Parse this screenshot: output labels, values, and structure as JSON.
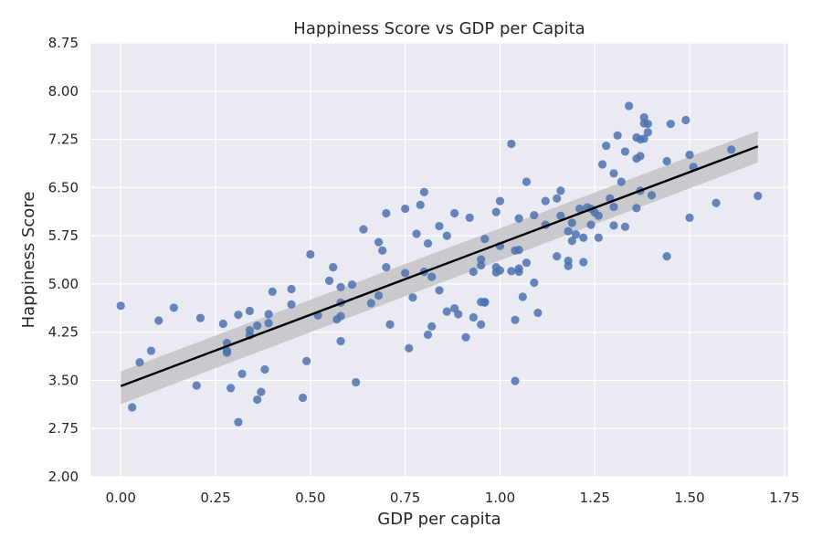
{
  "chart_data": {
    "type": "scatter",
    "title": "Happiness Score vs GDP per Capita",
    "xlabel": "GDP per capita",
    "ylabel": "Happiness Score",
    "xlim": [
      -0.08,
      1.76
    ],
    "ylim": [
      2.0,
      8.75
    ],
    "xticks": [
      0.0,
      0.25,
      0.5,
      0.75,
      1.0,
      1.25,
      1.5,
      1.75
    ],
    "xtick_labels": [
      "0.00",
      "0.25",
      "0.50",
      "0.75",
      "1.00",
      "1.25",
      "1.50",
      "1.75"
    ],
    "yticks": [
      2.0,
      2.75,
      3.5,
      4.25,
      5.0,
      5.75,
      6.5,
      7.25,
      8.0,
      8.75
    ],
    "ytick_labels": [
      "2.00",
      "2.75",
      "3.50",
      "4.25",
      "5.00",
      "5.75",
      "6.50",
      "7.25",
      "8.00",
      "8.75"
    ],
    "grid": true,
    "colors": {
      "background": "#eaeaf2",
      "grid": "#ffffff",
      "point": "#4c72b0",
      "fit_line": "#000000",
      "confidence_band": "#bdbdc2"
    },
    "regression": {
      "x": [
        0.0,
        1.68
      ],
      "y": [
        3.41,
        7.14
      ],
      "band_lower": [
        3.13,
        6.89
      ],
      "band_upper": [
        3.64,
        7.38
      ]
    },
    "points": [
      [
        0.0,
        4.66
      ],
      [
        0.03,
        3.08
      ],
      [
        0.05,
        3.78
      ],
      [
        0.08,
        3.96
      ],
      [
        0.1,
        4.43
      ],
      [
        0.14,
        4.63
      ],
      [
        0.2,
        3.42
      ],
      [
        0.21,
        4.47
      ],
      [
        0.27,
        4.38
      ],
      [
        0.28,
        4.08
      ],
      [
        0.28,
        3.96
      ],
      [
        0.28,
        3.93
      ],
      [
        0.29,
        3.38
      ],
      [
        0.31,
        2.85
      ],
      [
        0.31,
        4.52
      ],
      [
        0.32,
        3.6
      ],
      [
        0.34,
        4.58
      ],
      [
        0.34,
        4.28
      ],
      [
        0.34,
        4.2
      ],
      [
        0.36,
        4.35
      ],
      [
        0.36,
        3.2
      ],
      [
        0.37,
        3.32
      ],
      [
        0.38,
        3.67
      ],
      [
        0.39,
        4.53
      ],
      [
        0.39,
        4.39
      ],
      [
        0.4,
        4.88
      ],
      [
        0.45,
        4.92
      ],
      [
        0.45,
        4.68
      ],
      [
        0.48,
        3.23
      ],
      [
        0.49,
        3.8
      ],
      [
        0.5,
        5.46
      ],
      [
        0.52,
        4.51
      ],
      [
        0.55,
        5.05
      ],
      [
        0.56,
        5.26
      ],
      [
        0.57,
        4.45
      ],
      [
        0.58,
        4.95
      ],
      [
        0.58,
        4.71
      ],
      [
        0.58,
        4.5
      ],
      [
        0.58,
        4.11
      ],
      [
        0.61,
        4.99
      ],
      [
        0.62,
        3.47
      ],
      [
        0.64,
        5.85
      ],
      [
        0.66,
        4.7
      ],
      [
        0.68,
        5.65
      ],
      [
        0.68,
        4.82
      ],
      [
        0.69,
        5.52
      ],
      [
        0.7,
        6.1
      ],
      [
        0.7,
        5.26
      ],
      [
        0.71,
        4.37
      ],
      [
        0.75,
        6.17
      ],
      [
        0.75,
        5.17
      ],
      [
        0.76,
        4.0
      ],
      [
        0.77,
        4.79
      ],
      [
        0.78,
        5.78
      ],
      [
        0.79,
        6.23
      ],
      [
        0.8,
        6.43
      ],
      [
        0.8,
        5.19
      ],
      [
        0.81,
        5.63
      ],
      [
        0.81,
        4.21
      ],
      [
        0.82,
        5.11
      ],
      [
        0.82,
        4.34
      ],
      [
        0.84,
        5.9
      ],
      [
        0.84,
        4.9
      ],
      [
        0.86,
        5.75
      ],
      [
        0.86,
        4.57
      ],
      [
        0.88,
        6.1
      ],
      [
        0.88,
        4.62
      ],
      [
        0.89,
        4.53
      ],
      [
        0.91,
        4.17
      ],
      [
        0.92,
        6.03
      ],
      [
        0.93,
        4.48
      ],
      [
        0.93,
        5.19
      ],
      [
        0.95,
        5.38
      ],
      [
        0.95,
        5.29
      ],
      [
        0.95,
        4.72
      ],
      [
        0.95,
        4.37
      ],
      [
        0.96,
        5.7
      ],
      [
        0.96,
        4.71
      ],
      [
        0.96,
        4.72
      ],
      [
        0.99,
        6.12
      ],
      [
        0.99,
        5.26
      ],
      [
        0.99,
        5.18
      ],
      [
        1.0,
        6.29
      ],
      [
        1.0,
        5.59
      ],
      [
        1.0,
        5.21
      ],
      [
        1.03,
        7.18
      ],
      [
        1.03,
        5.2
      ],
      [
        1.04,
        5.52
      ],
      [
        1.04,
        4.44
      ],
      [
        1.04,
        3.49
      ],
      [
        1.05,
        6.02
      ],
      [
        1.05,
        5.53
      ],
      [
        1.05,
        5.24
      ],
      [
        1.05,
        5.19
      ],
      [
        1.06,
        4.8
      ],
      [
        1.07,
        6.59
      ],
      [
        1.07,
        5.33
      ],
      [
        1.09,
        6.07
      ],
      [
        1.09,
        5.02
      ],
      [
        1.1,
        4.55
      ],
      [
        1.12,
        6.29
      ],
      [
        1.12,
        5.92
      ],
      [
        1.15,
        6.33
      ],
      [
        1.15,
        5.43
      ],
      [
        1.16,
        6.45
      ],
      [
        1.16,
        6.06
      ],
      [
        1.18,
        5.82
      ],
      [
        1.18,
        5.36
      ],
      [
        1.18,
        5.28
      ],
      [
        1.19,
        5.95
      ],
      [
        1.19,
        5.67
      ],
      [
        1.2,
        5.77
      ],
      [
        1.21,
        6.17
      ],
      [
        1.22,
        5.72
      ],
      [
        1.22,
        5.34
      ],
      [
        1.23,
        6.19
      ],
      [
        1.24,
        6.17
      ],
      [
        1.24,
        5.92
      ],
      [
        1.25,
        6.11
      ],
      [
        1.26,
        6.06
      ],
      [
        1.26,
        5.72
      ],
      [
        1.27,
        6.86
      ],
      [
        1.28,
        7.15
      ],
      [
        1.29,
        6.33
      ],
      [
        1.3,
        6.2
      ],
      [
        1.3,
        5.91
      ],
      [
        1.3,
        6.72
      ],
      [
        1.31,
        7.31
      ],
      [
        1.32,
        6.59
      ],
      [
        1.33,
        7.06
      ],
      [
        1.33,
        5.89
      ],
      [
        1.34,
        7.77
      ],
      [
        1.36,
        6.95
      ],
      [
        1.36,
        7.28
      ],
      [
        1.37,
        7.25
      ],
      [
        1.37,
        6.99
      ],
      [
        1.37,
        6.45
      ],
      [
        1.38,
        7.59
      ],
      [
        1.38,
        7.5
      ],
      [
        1.38,
        7.26
      ],
      [
        1.39,
        7.36
      ],
      [
        1.39,
        7.49
      ],
      [
        1.4,
        6.38
      ],
      [
        1.44,
        6.91
      ],
      [
        1.44,
        5.43
      ],
      [
        1.45,
        7.49
      ],
      [
        1.49,
        7.55
      ],
      [
        1.5,
        7.01
      ],
      [
        1.5,
        6.03
      ],
      [
        1.51,
        6.82
      ],
      [
        1.57,
        6.26
      ],
      [
        1.61,
        7.09
      ],
      [
        1.68,
        6.37
      ],
      [
        1.36,
        6.18
      ]
    ]
  }
}
